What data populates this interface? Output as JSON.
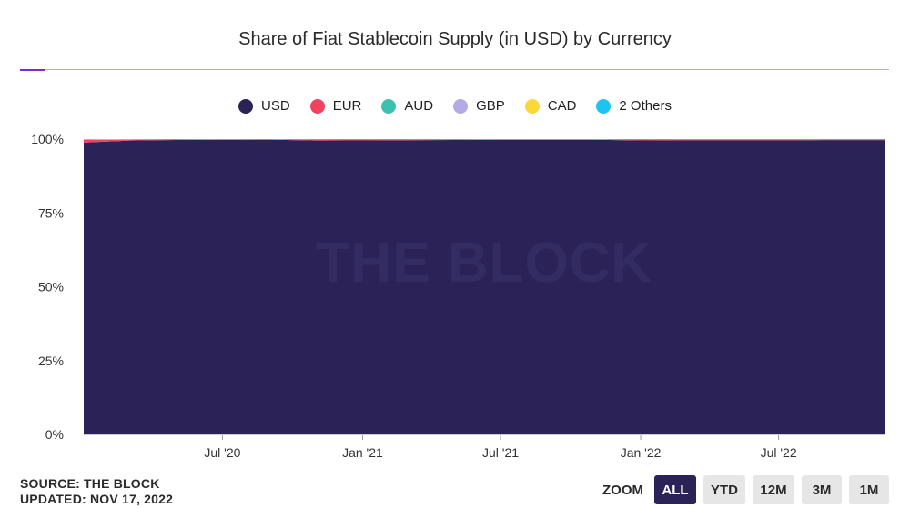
{
  "title": "Share of Fiat Stablecoin Supply (in USD) by Currency",
  "watermark": "THE BLOCK",
  "source_line": "SOURCE: THE BLOCK",
  "updated_line": "UPDATED: NOV 17, 2022",
  "zoom": {
    "label": "ZOOM",
    "buttons": [
      "ALL",
      "YTD",
      "12M",
      "3M",
      "1M"
    ],
    "active": "ALL"
  },
  "chart_data": {
    "type": "area",
    "stacked": true,
    "percent": true,
    "title": "Share of Fiat Stablecoin Supply (in USD) by Currency",
    "xlabel": "",
    "ylabel": "",
    "ylim": [
      0,
      100
    ],
    "y_ticks": [
      "0%",
      "25%",
      "50%",
      "75%",
      "100%"
    ],
    "x_ticks": [
      {
        "date": "2020-07-01",
        "label": "Jul '20"
      },
      {
        "date": "2021-01-01",
        "label": "Jan '21"
      },
      {
        "date": "2021-07-01",
        "label": "Jul '21"
      },
      {
        "date": "2022-01-01",
        "label": "Jan '22"
      },
      {
        "date": "2022-07-01",
        "label": "Jul '22"
      }
    ],
    "xlim": [
      "2020-01-01",
      "2022-11-17"
    ],
    "legend_position": "top-center",
    "grid": false,
    "x": [
      "2020-01-01",
      "2020-03-01",
      "2020-05-01",
      "2020-07-01",
      "2020-09-01",
      "2020-11-01",
      "2021-01-01",
      "2021-03-01",
      "2021-05-01",
      "2021-07-01",
      "2021-09-01",
      "2021-11-01",
      "2022-01-01",
      "2022-03-01",
      "2022-05-01",
      "2022-07-01",
      "2022-09-01",
      "2022-11-17"
    ],
    "series": [
      {
        "name": "USD",
        "color": "#2b2358",
        "values": [
          98.8,
          99.5,
          99.7,
          99.75,
          99.8,
          99.5,
          99.55,
          99.6,
          99.7,
          99.75,
          99.75,
          99.75,
          99.55,
          99.6,
          99.6,
          99.6,
          99.65,
          99.65
        ]
      },
      {
        "name": "EUR",
        "color": "#f1425f",
        "values": [
          0.9,
          0.3,
          0.15,
          0.12,
          0.1,
          0.35,
          0.3,
          0.25,
          0.17,
          0.12,
          0.12,
          0.12,
          0.3,
          0.28,
          0.28,
          0.28,
          0.23,
          0.23
        ]
      },
      {
        "name": "AUD",
        "color": "#3cc0b0",
        "values": [
          0.2,
          0.12,
          0.1,
          0.08,
          0.06,
          0.1,
          0.1,
          0.1,
          0.1,
          0.1,
          0.1,
          0.1,
          0.1,
          0.08,
          0.08,
          0.08,
          0.08,
          0.08
        ]
      },
      {
        "name": "GBP",
        "color": "#b4aae6",
        "values": [
          0.05,
          0.04,
          0.03,
          0.03,
          0.02,
          0.03,
          0.03,
          0.03,
          0.02,
          0.02,
          0.02,
          0.02,
          0.03,
          0.02,
          0.02,
          0.02,
          0.02,
          0.02
        ]
      },
      {
        "name": "CAD",
        "color": "#fbd83a",
        "values": [
          0.03,
          0.02,
          0.01,
          0.01,
          0.01,
          0.01,
          0.01,
          0.01,
          0.01,
          0.01,
          0.01,
          0.01,
          0.01,
          0.01,
          0.01,
          0.01,
          0.01,
          0.01
        ]
      },
      {
        "name": "2 Others",
        "color": "#1ec4ee",
        "values": [
          0.02,
          0.02,
          0.01,
          0.01,
          0.01,
          0.01,
          0.01,
          0.01,
          0.0,
          0.0,
          0.0,
          0.0,
          0.01,
          0.01,
          0.01,
          0.01,
          0.01,
          0.01
        ]
      }
    ]
  }
}
